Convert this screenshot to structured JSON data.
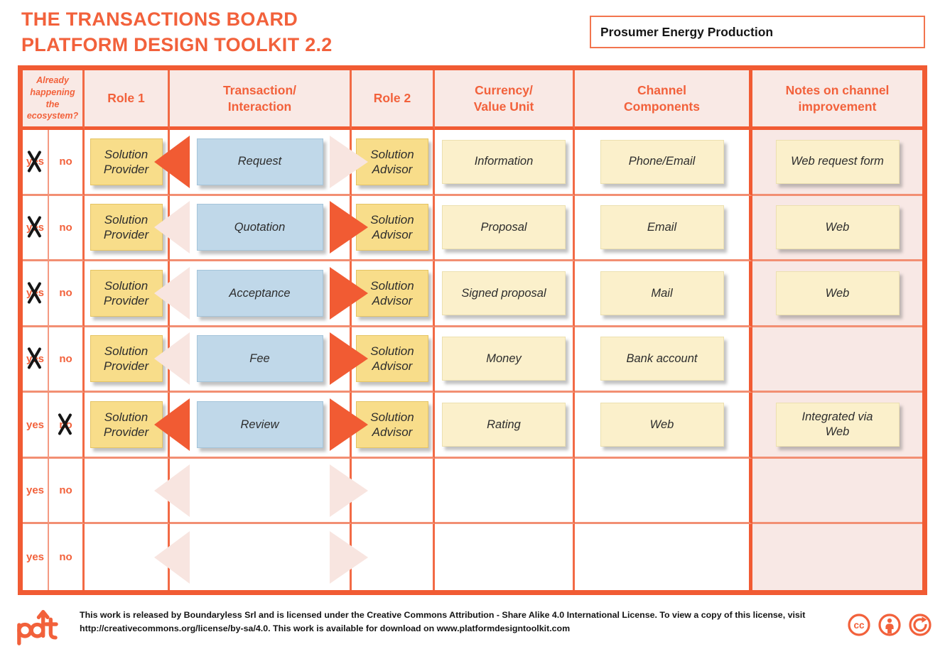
{
  "title": {
    "line1": "THE TRANSACTIONS BOARD",
    "line2": "PLATFORM DESIGN TOOLKIT 2.2"
  },
  "project": {
    "name": "Prosumer Energy Production"
  },
  "colors": {
    "accent": "#f2613b",
    "grid_strong": "#f15b33",
    "header_bg": "#f9e9e5",
    "notes_column_bg": "#f8e8e5",
    "role_sticky": "#f8dd8a",
    "transaction_sticky": "#c0d8e9",
    "content_sticky": "#fbf0cb",
    "arrow_solid": "#f15b33",
    "arrow_pale": "#f8e5e0"
  },
  "board": {
    "headers": {
      "already": "Already\nhappening\nthe\necosystem?",
      "role1": "Role 1",
      "transaction": "Transaction/\nInteraction",
      "role2": "Role 2",
      "currency": "Currency/\nValue Unit",
      "channel": "Channel\nComponents",
      "notes": "Notes on channel\nimprovement"
    },
    "yes_label": "yes",
    "no_label": "no",
    "rows": [
      {
        "crossed": "yes",
        "role1": "Solution\nProvider",
        "transaction": "Request",
        "arrow_left": "solid",
        "arrow_right": "pale",
        "role2": "Solution\nAdvisor",
        "currency": "Information",
        "channel": "Phone/Email",
        "notes": "Web request form"
      },
      {
        "crossed": "yes",
        "role1": "Solution\nProvider",
        "transaction": "Quotation",
        "arrow_left": "pale",
        "arrow_right": "solid",
        "role2": "Solution\nAdvisor",
        "currency": "Proposal",
        "channel": "Email",
        "notes": "Web"
      },
      {
        "crossed": "yes",
        "role1": "Solution\nProvider",
        "transaction": "Acceptance",
        "arrow_left": "pale",
        "arrow_right": "solid",
        "role2": "Solution\nAdvisor",
        "currency": "Signed proposal",
        "channel": "Mail",
        "notes": "Web"
      },
      {
        "crossed": "yes",
        "role1": "Solution\nProvider",
        "transaction": "Fee",
        "arrow_left": "pale",
        "arrow_right": "solid",
        "role2": "Solution\nAdvisor",
        "currency": "Money",
        "channel": "Bank account",
        "notes": null
      },
      {
        "crossed": "no",
        "role1": "Solution\nProvider",
        "transaction": "Review",
        "arrow_left": "solid",
        "arrow_right": "solid",
        "role2": "Solution\nAdvisor",
        "currency": "Rating",
        "channel": "Web",
        "notes": "Integrated via\nWeb"
      },
      {
        "crossed": null,
        "role1": null,
        "transaction": null,
        "arrow_left": "pale",
        "arrow_right": "pale",
        "role2": null,
        "currency": null,
        "channel": null,
        "notes": null
      },
      {
        "crossed": null,
        "role1": null,
        "transaction": null,
        "arrow_left": "pale",
        "arrow_right": "pale",
        "role2": null,
        "currency": null,
        "channel": null,
        "notes": null
      }
    ]
  },
  "footer": {
    "license_line1": "This work is released by Boundaryless Srl and is licensed under the Creative Commons Attribution - Share Alike 4.0 International License. To view a copy of this license, visit",
    "license_line2": "http://creativecommons.org/license/by-sa/4.0. This work is available for download on www.platformdesigntoolkit.com",
    "logo_name": "pdt-logo",
    "cc_icon_names": [
      "cc-icon",
      "attribution-icon",
      "share-alike-icon"
    ]
  }
}
